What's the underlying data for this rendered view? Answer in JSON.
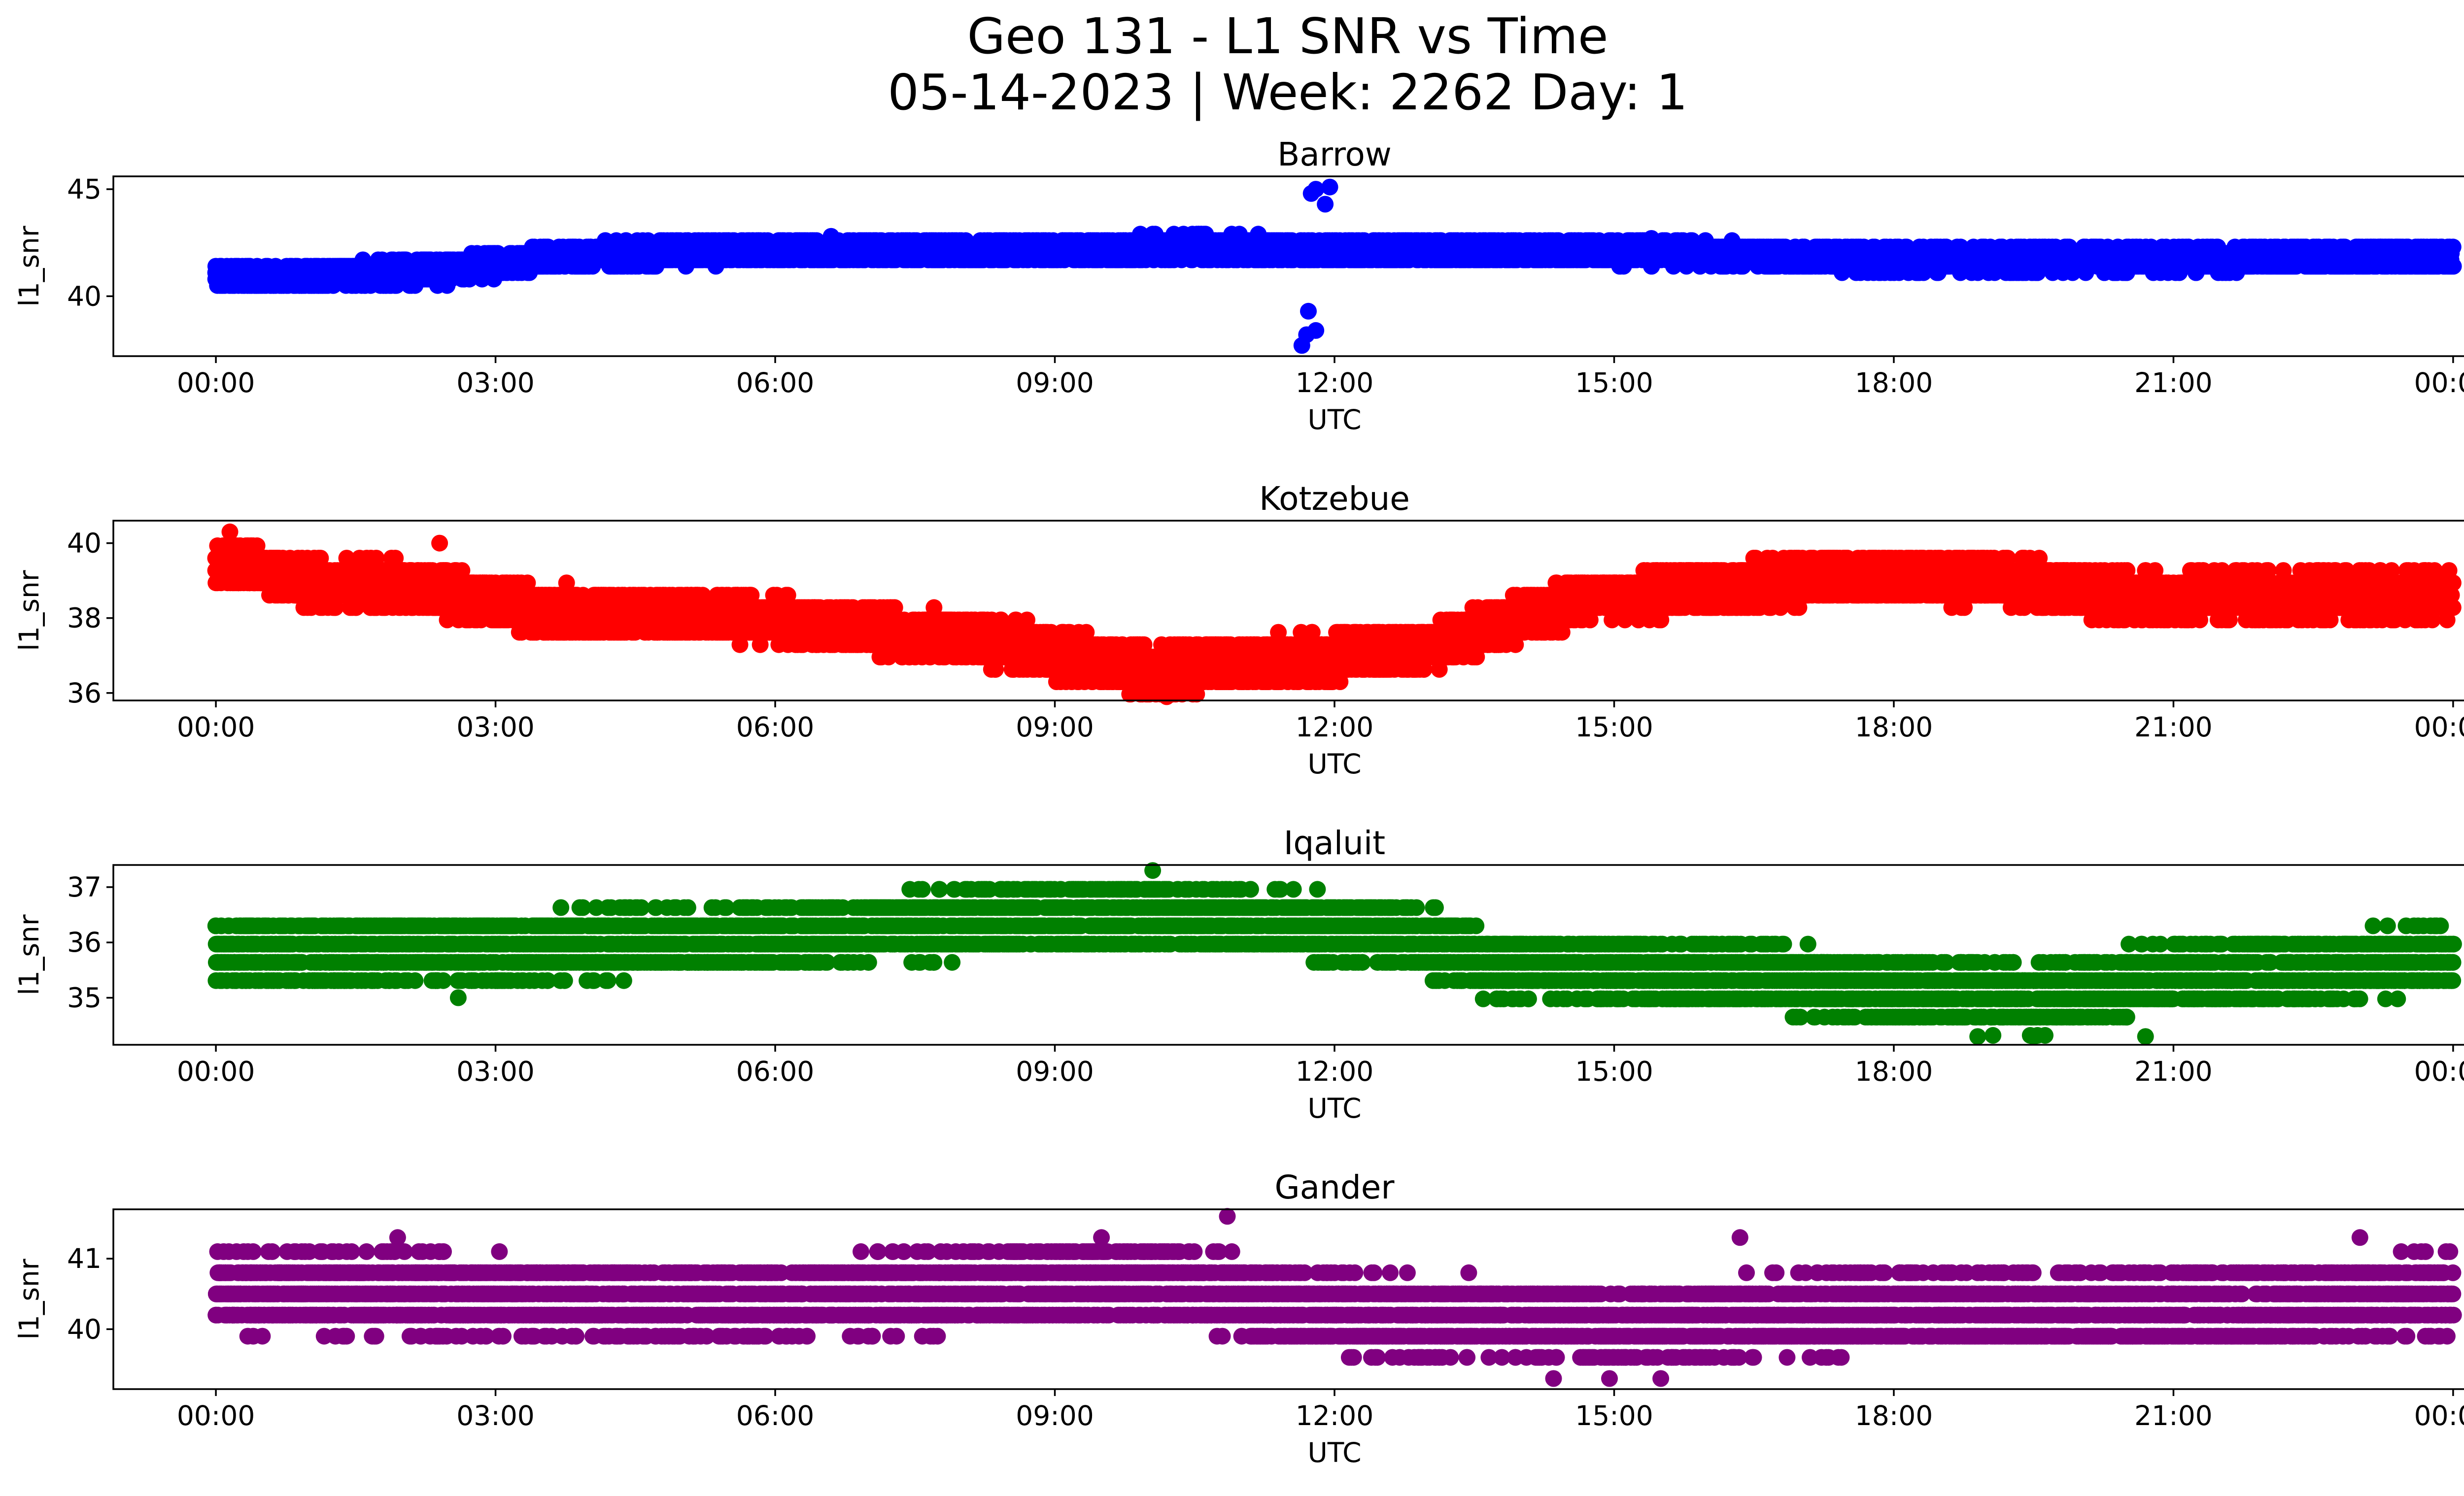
{
  "chart_data": {
    "type": "scatter",
    "title_line1": "Geo 131 - L1 SNR vs Time",
    "title_line2": "05-14-2023 | Week: 2262 Day: 1",
    "x_tick_labels": [
      "00:00",
      "03:00",
      "06:00",
      "09:00",
      "12:00",
      "15:00",
      "18:00",
      "21:00",
      "00:00"
    ],
    "xlim_hours": [
      -1.1,
      25.1
    ],
    "xlabel": "UTC",
    "ylabel": "l1_snr",
    "grid": false,
    "subplots": [
      {
        "title": "Barrow",
        "color": "#0000ff",
        "ylim": [
          37.2,
          45.6
        ],
        "yticks": [
          40,
          45
        ],
        "quantum": 0.3,
        "noise": 0.55,
        "bands": [
          {
            "x": 0,
            "y": 40.9
          },
          {
            "x": 1.0,
            "y": 40.9
          },
          {
            "x": 2.5,
            "y": 41.2
          },
          {
            "x": 3.5,
            "y": 41.8
          },
          {
            "x": 4.5,
            "y": 42.0
          },
          {
            "x": 6.5,
            "y": 42.2
          },
          {
            "x": 9.0,
            "y": 42.1
          },
          {
            "x": 10.5,
            "y": 42.3
          },
          {
            "x": 12.0,
            "y": 42.1
          },
          {
            "x": 15.0,
            "y": 42.1
          },
          {
            "x": 18.0,
            "y": 41.7
          },
          {
            "x": 20.0,
            "y": 41.7
          },
          {
            "x": 24.0,
            "y": 41.9
          }
        ],
        "outliers": [
          {
            "x": 11.65,
            "y": 37.7
          },
          {
            "x": 11.7,
            "y": 38.2
          },
          {
            "x": 11.72,
            "y": 39.3
          },
          {
            "x": 11.8,
            "y": 38.4
          },
          {
            "x": 11.75,
            "y": 44.8
          },
          {
            "x": 11.8,
            "y": 45.0
          },
          {
            "x": 11.9,
            "y": 44.3
          },
          {
            "x": 11.95,
            "y": 45.1
          },
          {
            "x": 6.6,
            "y": 42.8
          },
          {
            "x": 10.05,
            "y": 42.9
          },
          {
            "x": 15.4,
            "y": 42.7
          }
        ]
      },
      {
        "title": "Kotzebue",
        "color": "#ff0000",
        "ylim": [
          35.8,
          40.6
        ],
        "yticks": [
          36,
          38,
          40
        ],
        "quantum": 0.33,
        "noise": 0.6,
        "bands": [
          {
            "x": 0,
            "y": 39.6
          },
          {
            "x": 1.0,
            "y": 38.9
          },
          {
            "x": 2.0,
            "y": 38.9
          },
          {
            "x": 3.5,
            "y": 38.2
          },
          {
            "x": 6.0,
            "y": 38.0
          },
          {
            "x": 8.5,
            "y": 37.3
          },
          {
            "x": 10.0,
            "y": 36.6
          },
          {
            "x": 12.0,
            "y": 37.0
          },
          {
            "x": 13.0,
            "y": 37.2
          },
          {
            "x": 14.5,
            "y": 38.4
          },
          {
            "x": 16.0,
            "y": 38.8
          },
          {
            "x": 17.5,
            "y": 39.1
          },
          {
            "x": 19.0,
            "y": 39.0
          },
          {
            "x": 20.5,
            "y": 38.6
          },
          {
            "x": 24.0,
            "y": 38.6
          }
        ],
        "outliers": [
          {
            "x": 0.15,
            "y": 40.3
          },
          {
            "x": 2.4,
            "y": 40.0
          },
          {
            "x": 10.2,
            "y": 35.9
          },
          {
            "x": 17.5,
            "y": 39.6
          },
          {
            "x": 19.4,
            "y": 39.6
          }
        ]
      },
      {
        "title": "Iqaluit",
        "color": "#008000",
        "ylim": [
          34.15,
          37.4
        ],
        "yticks": [
          35,
          36,
          37
        ],
        "quantum": 0.33,
        "noise": 0.55,
        "bands": [
          {
            "x": 0,
            "y": 35.8
          },
          {
            "x": 3.0,
            "y": 35.9
          },
          {
            "x": 6.0,
            "y": 36.1
          },
          {
            "x": 8.5,
            "y": 36.4
          },
          {
            "x": 10.0,
            "y": 36.5
          },
          {
            "x": 12.5,
            "y": 36.2
          },
          {
            "x": 14.0,
            "y": 35.5
          },
          {
            "x": 16.5,
            "y": 35.4
          },
          {
            "x": 18.0,
            "y": 35.1
          },
          {
            "x": 19.5,
            "y": 35.0
          },
          {
            "x": 21.0,
            "y": 35.4
          },
          {
            "x": 24.0,
            "y": 35.7
          }
        ],
        "outliers": [
          {
            "x": 10.05,
            "y": 37.3
          },
          {
            "x": 2.6,
            "y": 35.0
          },
          {
            "x": 18.9,
            "y": 34.3
          },
          {
            "x": 19.5,
            "y": 34.3
          },
          {
            "x": 20.7,
            "y": 34.3
          }
        ]
      },
      {
        "title": "Gander",
        "color": "#800080",
        "ylim": [
          39.15,
          41.7
        ],
        "yticks": [
          40,
          41
        ],
        "quantum": 0.3,
        "noise": 0.5,
        "bands": [
          {
            "x": 0,
            "y": 40.55
          },
          {
            "x": 6.0,
            "y": 40.4
          },
          {
            "x": 10.0,
            "y": 40.7
          },
          {
            "x": 12.0,
            "y": 40.2
          },
          {
            "x": 15.0,
            "y": 40.1
          },
          {
            "x": 18.0,
            "y": 40.25
          },
          {
            "x": 21.0,
            "y": 40.3
          },
          {
            "x": 24.0,
            "y": 40.5
          }
        ],
        "outliers": [
          {
            "x": 1.95,
            "y": 41.3
          },
          {
            "x": 10.85,
            "y": 41.6
          },
          {
            "x": 9.5,
            "y": 41.3
          },
          {
            "x": 16.35,
            "y": 41.3
          },
          {
            "x": 23.0,
            "y": 41.3
          },
          {
            "x": 14.35,
            "y": 39.3
          },
          {
            "x": 14.95,
            "y": 39.3
          },
          {
            "x": 15.5,
            "y": 39.3
          }
        ]
      }
    ]
  }
}
